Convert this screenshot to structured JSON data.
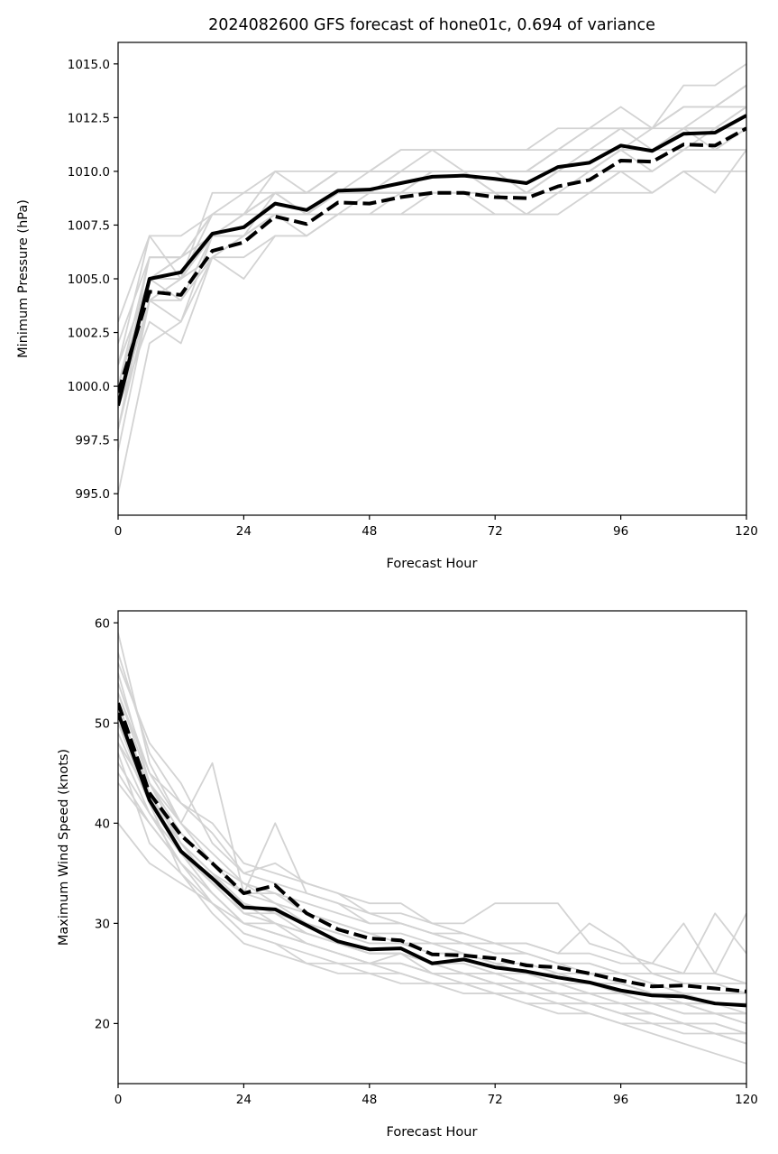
{
  "chart_data": [
    {
      "type": "line",
      "title": "2024082600 GFS forecast of hone01c, 0.694 of variance",
      "xlabel": "Forecast Hour",
      "ylabel": "Minimum Pressure (hPa)",
      "xlim": [
        0,
        120
      ],
      "ylim": [
        994.0,
        1016.0
      ],
      "x_ticks": [
        "0",
        "24",
        "48",
        "72",
        "96",
        "120"
      ],
      "y_ticks": [
        "995.0",
        "997.5",
        "1000.0",
        "1002.5",
        "1005.0",
        "1007.5",
        "1010.0",
        "1012.5",
        "1015.0"
      ],
      "x_tick_values": [
        0,
        24,
        48,
        72,
        96,
        120
      ],
      "y_tick_values": [
        995.0,
        997.5,
        1000.0,
        1002.5,
        1005.0,
        1007.5,
        1010.0,
        1012.5,
        1015.0
      ],
      "x": [
        0,
        6,
        12,
        18,
        24,
        30,
        36,
        42,
        48,
        54,
        60,
        66,
        72,
        78,
        84,
        90,
        96,
        102,
        108,
        114,
        120
      ],
      "series": [
        {
          "style": "solid",
          "color": "#000000",
          "values": [
            999.1,
            1005.0,
            1005.3,
            1007.1,
            1007.4,
            1008.5,
            1008.2,
            1009.1,
            1009.15,
            1009.45,
            1009.75,
            1009.8,
            1009.65,
            1009.45,
            1010.2,
            1010.4,
            1011.2,
            1010.95,
            1011.75,
            1011.8,
            1012.6
          ]
        },
        {
          "style": "dashed",
          "color": "#000000",
          "values": [
            999.7,
            1004.4,
            1004.25,
            1006.3,
            1006.7,
            1007.9,
            1007.55,
            1008.55,
            1008.5,
            1008.8,
            1009.0,
            1009.0,
            1008.8,
            1008.75,
            1009.3,
            1009.6,
            1010.5,
            1010.45,
            1011.25,
            1011.2,
            1012.0
          ]
        }
      ],
      "ensemble_color": "#d3d3d3",
      "ensemble": [
        [
          995,
          1002,
          1003,
          1007,
          1007,
          1008,
          1008,
          1009,
          1009,
          1010,
          1010,
          1010,
          1010,
          1009,
          1010,
          1010,
          1011,
          1011,
          1012,
          1012,
          1013
        ],
        [
          997,
          1004,
          1005,
          1007,
          1008,
          1009,
          1008,
          1009,
          1009,
          1009,
          1010,
          1010,
          1010,
          1010,
          1010,
          1011,
          1011,
          1011,
          1012,
          1012,
          1013
        ],
        [
          998,
          1005,
          1005,
          1007,
          1007,
          1008,
          1008,
          1009,
          1009,
          1010,
          1010,
          1010,
          1010,
          1009,
          1010,
          1010,
          1011,
          1011,
          1012,
          1012,
          1013
        ],
        [
          999,
          1005,
          1006,
          1008,
          1008,
          1009,
          1009,
          1010,
          1010,
          1010,
          1011,
          1010,
          1010,
          1010,
          1011,
          1011,
          1012,
          1012,
          1013,
          1013,
          1014
        ],
        [
          1000,
          1006,
          1006,
          1007,
          1008,
          1009,
          1008,
          1009,
          1009,
          1009,
          1010,
          1010,
          1009,
          1009,
          1010,
          1010,
          1011,
          1011,
          1012,
          1012,
          1012
        ],
        [
          1001,
          1007,
          1007,
          1008,
          1008,
          1009,
          1009,
          1009,
          1010,
          1010,
          1010,
          1010,
          1010,
          1010,
          1011,
          1011,
          1012,
          1011,
          1012,
          1013,
          1013
        ],
        [
          1002,
          1006,
          1006,
          1008,
          1009,
          1010,
          1010,
          1010,
          1010,
          1011,
          1011,
          1011,
          1011,
          1011,
          1012,
          1012,
          1012,
          1012,
          1013,
          1013,
          1014
        ],
        [
          1003,
          1007,
          1005,
          1009,
          1009,
          1009,
          1009,
          1010,
          1010,
          1010,
          1010,
          1010,
          1010,
          1010,
          1011,
          1012,
          1013,
          1012,
          1014,
          1014,
          1015
        ],
        [
          999,
          1003,
          1002,
          1006,
          1007,
          1008,
          1008,
          1009,
          1009,
          1009,
          1010,
          1010,
          1009,
          1009,
          1010,
          1010,
          1011,
          1011,
          1012,
          1011,
          1012
        ],
        [
          998,
          1004,
          1003,
          1006,
          1005,
          1007,
          1007,
          1008,
          1008,
          1008,
          1008,
          1008,
          1008,
          1008,
          1008,
          1009,
          1009,
          1009,
          1010,
          1010,
          1010
        ],
        [
          1000,
          1005,
          1004,
          1007,
          1007,
          1008,
          1007,
          1008,
          1008,
          1009,
          1009,
          1009,
          1009,
          1008,
          1009,
          1009,
          1010,
          1010,
          1011,
          1011,
          1011
        ],
        [
          999,
          1004,
          1004,
          1006,
          1006,
          1007,
          1007,
          1008,
          1008,
          1008,
          1009,
          1009,
          1008,
          1008,
          1009,
          1009,
          1010,
          1009,
          1010,
          1009,
          1011
        ],
        [
          1001,
          1005,
          1005,
          1008,
          1008,
          1009,
          1009,
          1010,
          1010,
          1010,
          1010,
          1010,
          1010,
          1010,
          1011,
          1011,
          1011,
          1012,
          1012,
          1012,
          1012
        ],
        [
          999,
          1006,
          1006,
          1008,
          1008,
          1010,
          1009,
          1010,
          1010,
          1011,
          1011,
          1011,
          1011,
          1011,
          1011,
          1012,
          1012,
          1012,
          1013,
          1013,
          1014
        ],
        [
          1000,
          1005,
          1006,
          1007,
          1008,
          1008,
          1008,
          1009,
          1009,
          1009,
          1010,
          1010,
          1010,
          1010,
          1010,
          1010,
          1011,
          1011,
          1011,
          1012,
          1012
        ],
        [
          998,
          1004,
          1005,
          1006,
          1007,
          1008,
          1008,
          1008,
          1009,
          1009,
          1009,
          1009,
          1009,
          1009,
          1009,
          1010,
          1010,
          1010,
          1011,
          1011,
          1011
        ],
        [
          1001,
          1005,
          1006,
          1008,
          1008,
          1009,
          1008,
          1009,
          1009,
          1010,
          1010,
          1010,
          1010,
          1009,
          1010,
          1011,
          1011,
          1010,
          1011,
          1011,
          1012
        ],
        [
          999,
          1005,
          1005,
          1007,
          1007,
          1009,
          1009,
          1009,
          1009,
          1009,
          1010,
          1010,
          1010,
          1010,
          1010,
          1010,
          1011,
          1011,
          1012,
          1012,
          1012
        ]
      ]
    },
    {
      "type": "line",
      "title": "",
      "xlabel": "Forecast Hour",
      "ylabel": "Maximum Wind Speed (knots)",
      "xlim": [
        0,
        120
      ],
      "ylim": [
        14,
        61.2
      ],
      "x_ticks": [
        "0",
        "24",
        "48",
        "72",
        "96",
        "120"
      ],
      "y_ticks": [
        "20",
        "30",
        "40",
        "50",
        "60"
      ],
      "x_tick_values": [
        0,
        24,
        48,
        72,
        96,
        120
      ],
      "y_tick_values": [
        20,
        30,
        40,
        50,
        60
      ],
      "x": [
        0,
        6,
        12,
        18,
        24,
        30,
        36,
        42,
        48,
        54,
        60,
        66,
        72,
        78,
        84,
        90,
        96,
        102,
        108,
        114,
        120
      ],
      "series": [
        {
          "style": "solid",
          "color": "#000000",
          "values": [
            51.0,
            42.3,
            37.2,
            34.5,
            31.6,
            31.4,
            29.8,
            28.2,
            27.4,
            27.5,
            26.0,
            26.4,
            25.6,
            25.2,
            24.6,
            24.1,
            23.3,
            22.8,
            22.7,
            22.0,
            21.8
          ]
        },
        {
          "style": "dashed",
          "color": "#000000",
          "values": [
            52.0,
            43.0,
            38.8,
            36.0,
            33.0,
            33.8,
            31.0,
            29.4,
            28.5,
            28.3,
            26.9,
            26.8,
            26.5,
            25.8,
            25.6,
            25.0,
            24.3,
            23.7,
            23.8,
            23.5,
            23.2
          ]
        }
      ],
      "ensemble_color": "#d3d3d3",
      "ensemble": [
        [
          59,
          46,
          40,
          46,
          33,
          40,
          33,
          32,
          31,
          30,
          29,
          28,
          27,
          27,
          26,
          25,
          25,
          24,
          23,
          23,
          23
        ],
        [
          56,
          48,
          44,
          38,
          35,
          36,
          34,
          33,
          32,
          32,
          30,
          30,
          32,
          32,
          32,
          28,
          27,
          26,
          30,
          25,
          31
        ],
        [
          53,
          45,
          42,
          40,
          36,
          35,
          34,
          33,
          31,
          31,
          30,
          29,
          28,
          28,
          27,
          30,
          28,
          25,
          25,
          31,
          27
        ],
        [
          50,
          44,
          39,
          36,
          34,
          33,
          32,
          31,
          30,
          30,
          29,
          28,
          28,
          27,
          26,
          26,
          25,
          25,
          24,
          24,
          23
        ],
        [
          48,
          43,
          38,
          35,
          32,
          31,
          30,
          29,
          28,
          28,
          27,
          27,
          26,
          25,
          25,
          24,
          24,
          23,
          23,
          22,
          22
        ],
        [
          52,
          43,
          37,
          34,
          32,
          30,
          29,
          28,
          27,
          27,
          26,
          25,
          25,
          24,
          24,
          23,
          22,
          22,
          21,
          21,
          20
        ],
        [
          46,
          41,
          36,
          33,
          30,
          29,
          28,
          27,
          26,
          26,
          25,
          25,
          24,
          24,
          23,
          22,
          22,
          21,
          20,
          20,
          19
        ],
        [
          54,
          45,
          40,
          37,
          34,
          32,
          31,
          30,
          29,
          28,
          28,
          27,
          26,
          26,
          25,
          25,
          24,
          23,
          23,
          22,
          22
        ],
        [
          44,
          40,
          36,
          32,
          29,
          28,
          27,
          26,
          26,
          25,
          24,
          24,
          23,
          23,
          22,
          22,
          21,
          20,
          20,
          19,
          18
        ],
        [
          50,
          42,
          38,
          35,
          31,
          31,
          29,
          28,
          27,
          27,
          26,
          26,
          25,
          24,
          24,
          23,
          23,
          22,
          22,
          21,
          21
        ],
        [
          51,
          43,
          37,
          33,
          30,
          30,
          28,
          27,
          26,
          27,
          25,
          25,
          24,
          23,
          22,
          22,
          21,
          21,
          20,
          19,
          19
        ],
        [
          49,
          42,
          35,
          32,
          29,
          28,
          26,
          26,
          25,
          25,
          24,
          24,
          23,
          22,
          22,
          21,
          20,
          20,
          19,
          19,
          18
        ],
        [
          55,
          44,
          38,
          35,
          33,
          33,
          31,
          30,
          29,
          29,
          28,
          28,
          27,
          27,
          26,
          26,
          25,
          25,
          24,
          24,
          24
        ],
        [
          47,
          38,
          35,
          31,
          28,
          27,
          26,
          25,
          25,
          24,
          24,
          23,
          23,
          22,
          21,
          21,
          20,
          19,
          18,
          17,
          16
        ],
        [
          53,
          44,
          40,
          36,
          33,
          32,
          30,
          29,
          28,
          28,
          27,
          27,
          26,
          25,
          25,
          24,
          24,
          23,
          22,
          22,
          21
        ],
        [
          40,
          36,
          34,
          32,
          30,
          29,
          28,
          27,
          26,
          26,
          25,
          25,
          24,
          24,
          23,
          23,
          22,
          22,
          21,
          21,
          20
        ],
        [
          57,
          47,
          42,
          39,
          35,
          34,
          33,
          32,
          30,
          30,
          29,
          29,
          28,
          28,
          27,
          27,
          26,
          26,
          25,
          25,
          24
        ],
        [
          45,
          40,
          36,
          33,
          30,
          29,
          28,
          27,
          26,
          26,
          25,
          24,
          24,
          23,
          23,
          22,
          21,
          21,
          20,
          20,
          19
        ],
        [
          52,
          43,
          38,
          34,
          31,
          30,
          29,
          28,
          27,
          27,
          26,
          25,
          25,
          24,
          24,
          23,
          23,
          22,
          22,
          21,
          21
        ],
        [
          48,
          41,
          37,
          34,
          31,
          30,
          29,
          28,
          27,
          27,
          26,
          26,
          25,
          25,
          24,
          24,
          23,
          23,
          22,
          22,
          22
        ]
      ]
    }
  ]
}
